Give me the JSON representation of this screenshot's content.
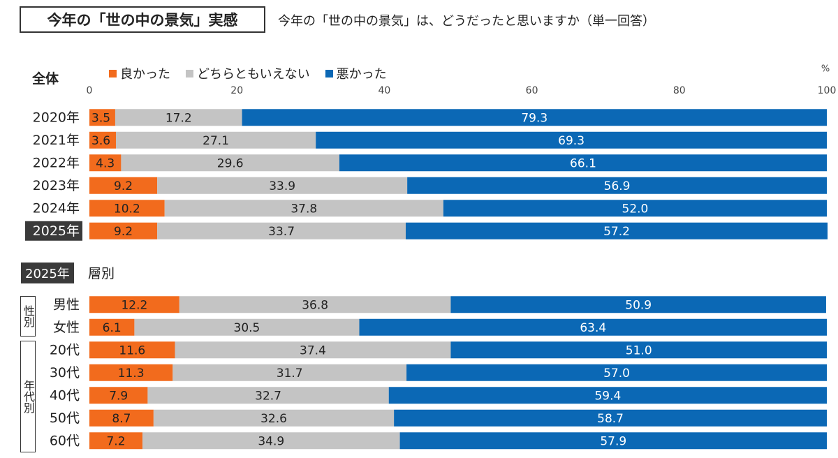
{
  "header": {
    "title": "今年の「世の中の景気」実感",
    "question": "今年の「世の中の景気」は、どうだったと思いますか（単一回答）"
  },
  "sections": {
    "overall_label": "全体",
    "segment_year": "2025年",
    "segment_label": "層別"
  },
  "groups": {
    "gender_label": "性別",
    "age_label": "年代別"
  },
  "colors": {
    "good": "#f26b1d",
    "neutral": "#c4c4c4",
    "bad": "#0b68b5"
  },
  "chart_data": [
    {
      "type": "bar",
      "orientation": "horizontal",
      "stacked": true,
      "title": "全体",
      "unit": "%",
      "xlim": [
        0,
        100
      ],
      "ticks": [
        0,
        20,
        40,
        60,
        80,
        100
      ],
      "grid": false,
      "legend_position": "top",
      "highlight_category": "2025年",
      "categories": [
        "2020年",
        "2021年",
        "2022年",
        "2023年",
        "2024年",
        "2025年"
      ],
      "series": [
        {
          "name": "良かった",
          "values": [
            3.5,
            3.6,
            4.3,
            9.2,
            10.2,
            9.2
          ]
        },
        {
          "name": "どちらともいえない",
          "values": [
            17.2,
            27.1,
            29.6,
            33.9,
            37.8,
            33.7
          ]
        },
        {
          "name": "悪かった",
          "values": [
            79.3,
            69.3,
            66.1,
            56.9,
            52.0,
            57.2
          ]
        }
      ]
    },
    {
      "type": "bar",
      "orientation": "horizontal",
      "stacked": true,
      "title": "2025年 層別",
      "unit": "%",
      "xlim": [
        0,
        100
      ],
      "grid": false,
      "categories": [
        "男性",
        "女性",
        "20代",
        "30代",
        "40代",
        "50代",
        "60代"
      ],
      "series": [
        {
          "name": "良かった",
          "values": [
            12.2,
            6.1,
            11.6,
            11.3,
            7.9,
            8.7,
            7.2
          ]
        },
        {
          "name": "どちらともいえない",
          "values": [
            36.8,
            30.5,
            37.4,
            31.7,
            32.7,
            32.6,
            34.9
          ]
        },
        {
          "name": "悪かった",
          "values": [
            50.9,
            63.4,
            51.0,
            57.0,
            59.4,
            58.7,
            57.9
          ]
        }
      ]
    }
  ]
}
